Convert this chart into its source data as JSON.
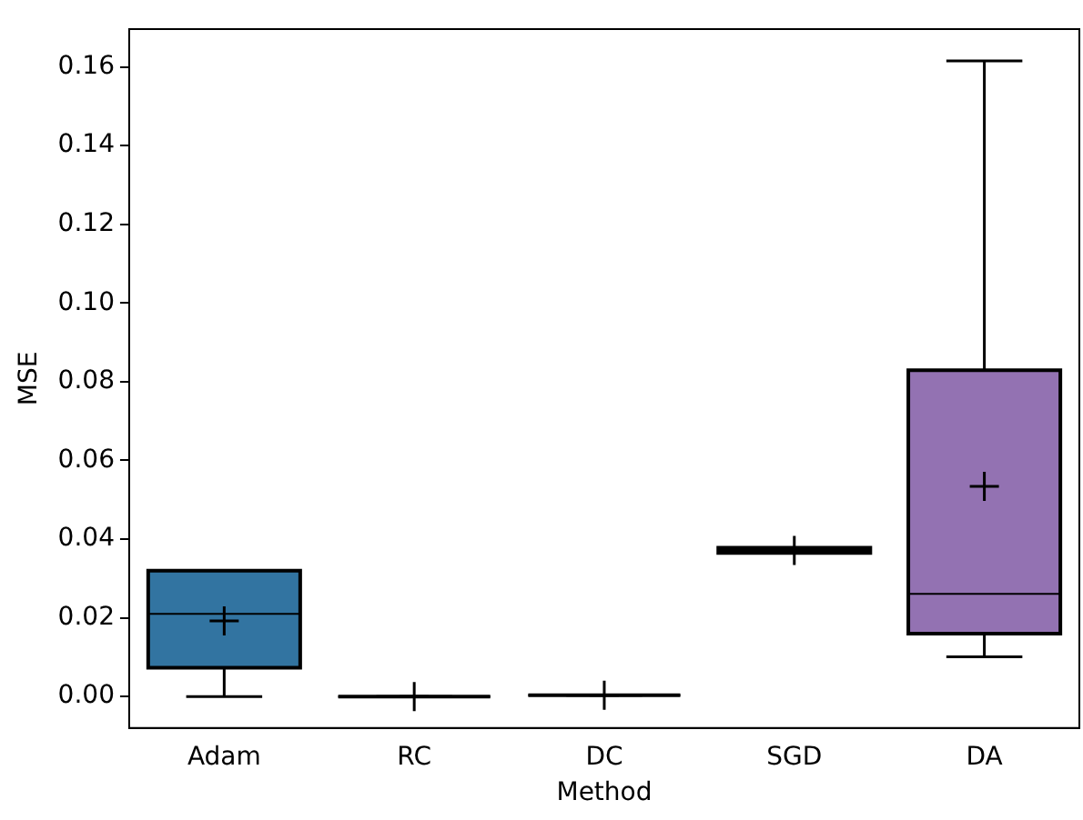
{
  "chart_data": {
    "type": "box",
    "xlabel": "Method",
    "ylabel": "MSE",
    "categories": [
      "Adam",
      "RC",
      "DC",
      "SGD",
      "DA"
    ],
    "colors": [
      "#3274a1",
      "#000000",
      "#000000",
      "#000000",
      "#9372b2"
    ],
    "boxes": [
      {
        "low": 0,
        "q1": 0.0073,
        "median": 0.021,
        "q3": 0.032,
        "high": 0.032,
        "mean": 0.0192
      },
      {
        "low": 0,
        "q1": 0,
        "median": 0,
        "q3": 0,
        "high": 0,
        "mean": 0
      },
      {
        "low": 0.0003,
        "q1": 0.0003,
        "median": 0.0003,
        "q3": 0.0003,
        "high": 0.0003,
        "mean": 0.0003
      },
      {
        "low": 0.0365,
        "q1": 0.0365,
        "median": 0.0371,
        "q3": 0.0378,
        "high": 0.0378,
        "mean": 0.0371
      },
      {
        "low": 0.0101,
        "q1": 0.016,
        "median": 0.0261,
        "q3": 0.0829,
        "high": 0.1615,
        "mean": 0.0534
      }
    ],
    "ylim": [
      -0.008,
      0.1696
    ],
    "yticks": [
      {
        "value": 0,
        "label": "0.00"
      },
      {
        "value": 0.02,
        "label": "0.02"
      },
      {
        "value": 0.04,
        "label": "0.04"
      },
      {
        "value": 0.06,
        "label": "0.06"
      },
      {
        "value": 0.08,
        "label": "0.08"
      },
      {
        "value": 0.1,
        "label": "0.10"
      },
      {
        "value": 0.12,
        "label": "0.12"
      },
      {
        "value": 0.14,
        "label": "0.14"
      },
      {
        "value": 0.16,
        "label": "0.16"
      }
    ],
    "grid": false,
    "marker": "cross"
  }
}
